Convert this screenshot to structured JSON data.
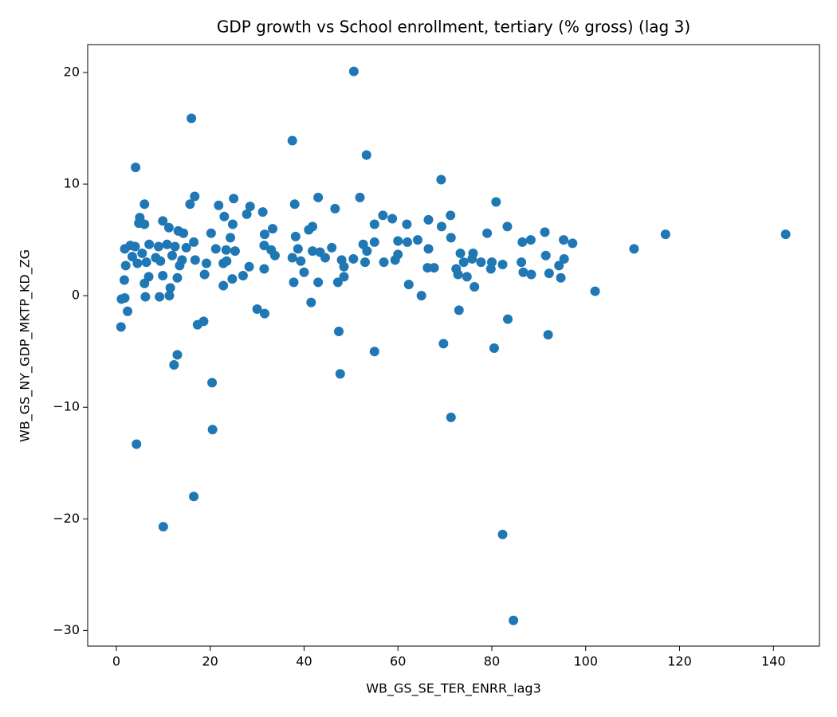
{
  "chart_data": {
    "type": "scatter",
    "title": "GDP growth vs School enrollment, tertiary (% gross) (lag 3)",
    "x_label": "WB_GS_SE_TER_ENRR_lag3",
    "y_label": "WB_GS_NY_GDP_MKTP_KD_ZG",
    "color": "#1f77b4",
    "xlim": [
      -6.1,
      149.8
    ],
    "ylim": [
      -31.4,
      22.5
    ],
    "xticks": [
      0,
      20,
      40,
      60,
      80,
      100,
      120,
      140
    ],
    "yticks": [
      {
        "value": -30,
        "label": "−30"
      },
      {
        "value": -20,
        "label": "−20"
      },
      {
        "value": -10,
        "label": "−10"
      },
      0,
      10,
      20
    ],
    "x": [
      50.6,
      16,
      37.5,
      53.3,
      4.1,
      69.2,
      16.7,
      43,
      51.9,
      25,
      80.9,
      6,
      15.7,
      38,
      21.8,
      28.5,
      46.6,
      31.2,
      27.8,
      56.8,
      71.2,
      23,
      5,
      58.8,
      66.5,
      9.9,
      4.8,
      6,
      24.8,
      55,
      61.9,
      41.8,
      83.3,
      11.2,
      33.3,
      69.3,
      41,
      13.2,
      14.3,
      20.2,
      31.6,
      79,
      91.3,
      117,
      142.6,
      24.3,
      38.2,
      71.3,
      95.3,
      88.3,
      86.5,
      60,
      62,
      64.2,
      97.2,
      16.5,
      31.5,
      52.6,
      55,
      110.3,
      4,
      1.8,
      3,
      7,
      9,
      10.8,
      12.5,
      14.9,
      21.2,
      23.4,
      25.3,
      33,
      38.7,
      41.8,
      43.4,
      45.9,
      53.4,
      60,
      66.5,
      73.3,
      76,
      91.5,
      3.4,
      5.5,
      8.4,
      11.9,
      14,
      16.8,
      23.5,
      33.8,
      37.5,
      39.3,
      44.5,
      48,
      50.5,
      53,
      57,
      59.4,
      74,
      75.8,
      77.7,
      80,
      82.3,
      86.3,
      94.3,
      95.4,
      2,
      4.5,
      6.4,
      9.4,
      13.5,
      19.2,
      22.8,
      28.3,
      31.5,
      40,
      48.5,
      66.3,
      67.7,
      72.4,
      79.8,
      86.7,
      88.4,
      92.2,
      94.7,
      1.7,
      6.9,
      9.9,
      13,
      18.8,
      24.7,
      27,
      37.8,
      43,
      47.2,
      48.5,
      72.8,
      74.7,
      76.3,
      62.3,
      6,
      11.5,
      22.8,
      102,
      1.1,
      1.8,
      6.2,
      9.2,
      11.3,
      65,
      41.5,
      30,
      31.6,
      2.4,
      73,
      83.4,
      18.6,
      17.3,
      1,
      47.4,
      92,
      69.7,
      80.5,
      55,
      13,
      12.3,
      47.7,
      20.4,
      71.3,
      20.5,
      4.3,
      16.5,
      10,
      82.3,
      84.6
    ],
    "values": [
      20.1,
      15.9,
      13.9,
      12.6,
      11.5,
      10.4,
      8.9,
      8.8,
      8.8,
      8.7,
      8.4,
      8.2,
      8.2,
      8.2,
      8.1,
      8,
      7.8,
      7.5,
      7.3,
      7.2,
      7.2,
      7.1,
      7,
      6.9,
      6.8,
      6.7,
      6.5,
      6.4,
      6.4,
      6.4,
      6.4,
      6.2,
      6.2,
      6.1,
      6,
      6.2,
      5.9,
      5.8,
      5.6,
      5.6,
      5.5,
      5.6,
      5.7,
      5.5,
      5.5,
      5.2,
      5.3,
      5.2,
      5,
      5,
      4.8,
      4.9,
      4.8,
      5,
      4.7,
      4.8,
      4.5,
      4.6,
      4.8,
      4.2,
      4.4,
      4.2,
      4.5,
      4.6,
      4.4,
      4.6,
      4.4,
      4.3,
      4.2,
      4.1,
      4,
      4.1,
      4.2,
      4,
      3.9,
      4.3,
      4,
      3.7,
      4.2,
      3.8,
      3.8,
      3.6,
      3.5,
      3.8,
      3.4,
      3.6,
      3.2,
      3.2,
      3.1,
      3.6,
      3.4,
      3.1,
      3.4,
      3.2,
      3.3,
      3,
      3,
      3.2,
      3,
      3.3,
      3,
      3,
      2.8,
      3,
      2.7,
      3.3,
      2.7,
      2.9,
      3,
      3.1,
      2.7,
      2.9,
      2.9,
      2.6,
      2.4,
      2.1,
      2.6,
      2.5,
      2.5,
      2.4,
      2.4,
      2.1,
      1.9,
      2,
      1.6,
      1.4,
      1.7,
      1.8,
      1.6,
      1.9,
      1.5,
      1.8,
      1.2,
      1.2,
      1.2,
      1.7,
      1.9,
      1.7,
      0.8,
      1,
      1.1,
      0.7,
      0.9,
      0.4,
      -0.3,
      -0.2,
      -0.1,
      -0.1,
      0,
      0,
      -0.6,
      -1.2,
      -1.6,
      -1.4,
      -1.3,
      -2.1,
      -2.3,
      -2.6,
      -2.8,
      -3.2,
      -3.5,
      -4.3,
      -4.7,
      -5,
      -5.3,
      -6.2,
      -7,
      -7.8,
      -10.9,
      -12,
      -13.3,
      -18,
      -20.7,
      -21.4,
      -29.1
    ]
  }
}
